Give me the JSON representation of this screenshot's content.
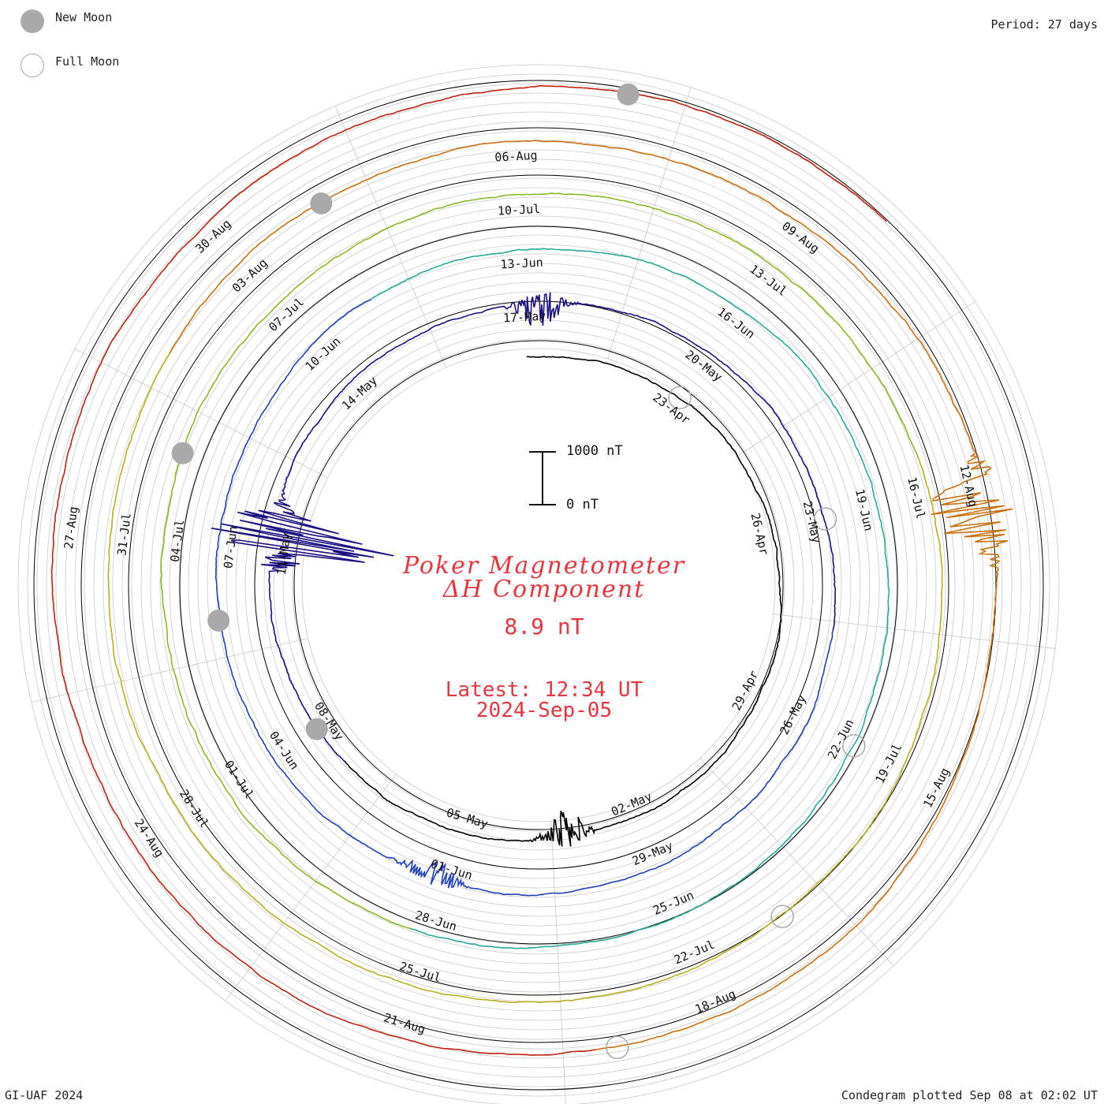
{
  "header": {
    "period": "Period: 27 days"
  },
  "legend": {
    "new_moon": "New Moon",
    "full_moon": "Full Moon",
    "new_moon_color": "#a9a9a9",
    "full_moon_color": "#a9a9a9"
  },
  "title": {
    "line1": "Poker Magnetometer",
    "line2": "ΔH Component",
    "value": "8.9 nT",
    "latest": "Latest: 12:34 UT",
    "date": "2024-Sep-05",
    "color": "#e8353c"
  },
  "scale_bar": {
    "top_label": "1000 nT",
    "bottom_label": "0 nT"
  },
  "footer": {
    "left": "GI-UAF 2024",
    "right": "Condegram plotted Sep 08 at 02:02 UT"
  },
  "chart_data": {
    "type": "line",
    "coordinate_system": "polar spiral (condegram)",
    "period_days": 27,
    "component": "ΔH",
    "units": "nT",
    "scale_bar_nT": [
      0,
      1000
    ],
    "data_start": "2024-04-20",
    "data_end": "2024-09-05",
    "rotation_labels": [
      {
        "lap": 0,
        "labels": [
          "23-Apr",
          "26-Apr",
          "29-Apr",
          "02-May",
          "05-May",
          "08-May",
          "11-May",
          "14-May",
          "17-May"
        ]
      },
      {
        "lap": 1,
        "labels": [
          "20-May",
          "23-May",
          "26-May",
          "29-May",
          "01-Jun",
          "04-Jun",
          "07-Jun",
          "10-Jun",
          "13-Jun"
        ]
      },
      {
        "lap": 2,
        "labels": [
          "16-Jun",
          "19-Jun",
          "22-Jun",
          "25-Jun",
          "28-Jun",
          "01-Jul",
          "04-Jul",
          "07-Jul",
          "10-Jul"
        ]
      },
      {
        "lap": 3,
        "labels": [
          "13-Jul",
          "16-Jul",
          "19-Jul",
          "22-Jul",
          "25-Jul",
          "28-Jul",
          "31-Jul",
          "03-Aug",
          "06-Aug"
        ]
      },
      {
        "lap": 4,
        "labels": [
          "09-Aug",
          "12-Aug",
          "15-Aug",
          "18-Aug",
          "21-Aug",
          "24-Aug",
          "27-Aug",
          "30-Aug"
        ]
      }
    ],
    "new_moons": [
      "2024-05-08",
      "2024-06-06",
      "2024-07-05",
      "2024-08-04",
      "2024-09-03"
    ],
    "full_moons": [
      "2024-04-23",
      "2024-05-23",
      "2024-06-22",
      "2024-07-21",
      "2024-08-19"
    ],
    "line_colors": [
      "#000000",
      "#1a1080",
      "#2040b8",
      "#2aa89a",
      "#8ab828",
      "#b8b020",
      "#c87010",
      "#c02010"
    ],
    "disturbances": [
      {
        "date": "2024-05-11",
        "peak_nT": 2000
      },
      {
        "date": "2024-08-12",
        "peak_nT": 1000
      },
      {
        "date": "2024-06-01",
        "peak_nT": 300
      },
      {
        "date": "2024-05-03",
        "peak_nT": 400
      },
      {
        "date": "2024-05-17",
        "peak_nT": 400
      }
    ]
  }
}
